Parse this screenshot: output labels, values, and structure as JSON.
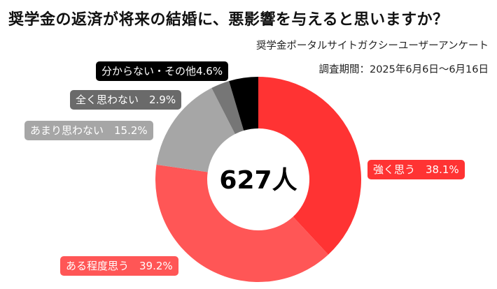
{
  "title": "奨学金の返済が将来の結婚に、悪影響を与えると思いますか？",
  "source": "奨学金ポータルサイトガクシーユーザーアンケート",
  "period": "調査期間：2025年6月6日〜6月16日",
  "chart_data": {
    "type": "pie",
    "donut": true,
    "center_label": "627人",
    "slices": [
      {
        "label": "強く思う",
        "value": 38.1,
        "display": "強く思う　38.1%",
        "color": "#ff3333"
      },
      {
        "label": "ある程度思う",
        "value": 39.2,
        "display": "ある程度思う　39.2%",
        "color": "#ff5656"
      },
      {
        "label": "あまり思わない",
        "value": 15.2,
        "display": "あまり思わない　15.2%",
        "color": "#a6a6a6"
      },
      {
        "label": "全く思わない",
        "value": 2.9,
        "display": "全く思わない　2.9%",
        "color": "#767676"
      },
      {
        "label": "分からない・その他",
        "value": 4.6,
        "display": "分からない・その他4.6%",
        "color": "#000000"
      }
    ]
  }
}
